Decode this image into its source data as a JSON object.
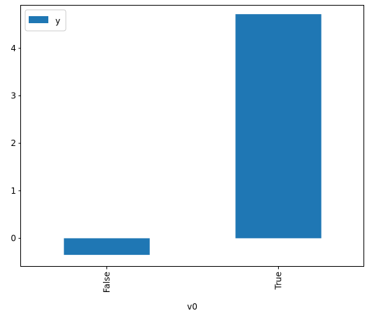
{
  "chart_data": {
    "type": "bar",
    "categories": [
      "False",
      "True"
    ],
    "series": [
      {
        "name": "y",
        "values": [
          -0.35,
          4.72
        ],
        "color": "#1f77b4"
      }
    ],
    "xlabel": "v0",
    "ylabel": "",
    "ylim": [
      -0.6,
      4.9
    ],
    "yticks": [
      0,
      1,
      2,
      3,
      4
    ],
    "xtick_rotation": "vertical",
    "legend": {
      "position": "upper-left"
    },
    "grid": false
  }
}
